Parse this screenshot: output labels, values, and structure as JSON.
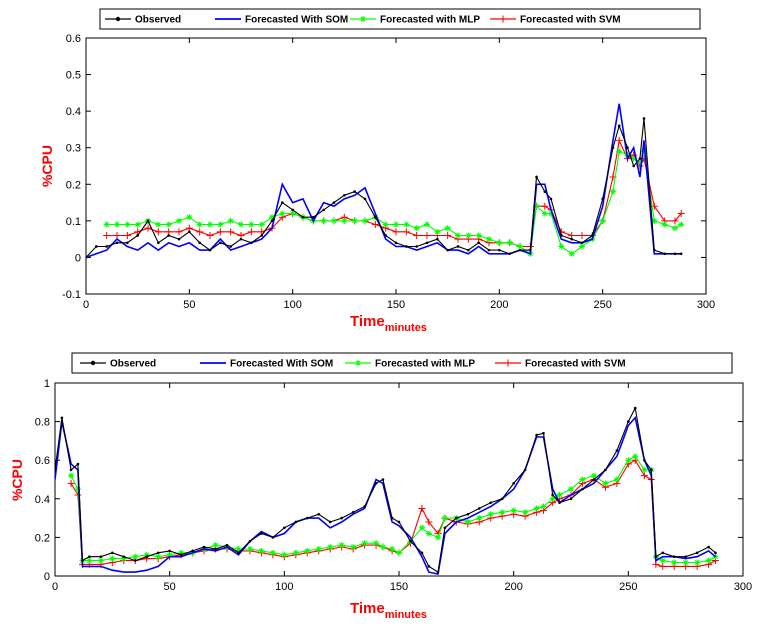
{
  "colors": {
    "observed": "#000000",
    "som": "#0000ff",
    "mlp": "#00ff00",
    "svm": "#ff0000",
    "label": "#ff0000"
  },
  "chart_data": [
    {
      "type": "line",
      "ylabel": "%CPU",
      "xlabel": "Time",
      "xlabel_sub": "minutes",
      "xlim": [
        0,
        300
      ],
      "ylim": [
        -0.1,
        0.6
      ],
      "xticks": [
        "0",
        "50",
        "100",
        "150",
        "200",
        "250",
        "300"
      ],
      "yticks": [
        "-0.1",
        "0",
        "0.1",
        "0.2",
        "0.3",
        "0.4",
        "0.5",
        "0.6"
      ],
      "legend_position": "top-outside",
      "x": [
        0,
        5,
        10,
        15,
        20,
        25,
        30,
        35,
        40,
        45,
        50,
        55,
        60,
        65,
        70,
        75,
        80,
        85,
        90,
        95,
        100,
        105,
        110,
        115,
        120,
        125,
        130,
        135,
        140,
        145,
        150,
        155,
        160,
        165,
        170,
        175,
        180,
        185,
        190,
        195,
        200,
        205,
        210,
        215,
        218,
        222,
        225,
        230,
        235,
        240,
        245,
        250,
        255,
        258,
        262,
        265,
        268,
        270,
        275,
        280,
        285,
        288
      ],
      "series": [
        {
          "name": "Observed",
          "color_key": "observed",
          "marker": "dot",
          "values": [
            0,
            0.03,
            0.03,
            0.04,
            0.04,
            0.06,
            0.1,
            0.04,
            0.06,
            0.05,
            0.07,
            0.04,
            0.02,
            0.04,
            0.03,
            0.05,
            0.04,
            0.06,
            0.1,
            0.15,
            0.13,
            0.11,
            0.11,
            0.13,
            0.15,
            0.17,
            0.18,
            0.16,
            0.11,
            0.06,
            0.04,
            0.03,
            0.03,
            0.04,
            0.05,
            0.02,
            0.03,
            0.02,
            0.04,
            0.02,
            0.02,
            0.01,
            0.02,
            0.02,
            0.22,
            0.18,
            0.16,
            0.06,
            0.05,
            0.04,
            0.06,
            0.16,
            0.3,
            0.36,
            0.3,
            0.25,
            0.27,
            0.38,
            0.02,
            0.01,
            0.01,
            0.01
          ]
        },
        {
          "name": "Forecasted With SOM",
          "color_key": "som",
          "marker": "none",
          "values": [
            0,
            0.01,
            0.02,
            0.05,
            0.03,
            0.02,
            0.04,
            0.02,
            0.04,
            0.03,
            0.04,
            0.02,
            0.02,
            0.05,
            0.02,
            0.03,
            0.04,
            0.05,
            0.08,
            0.2,
            0.15,
            0.16,
            0.1,
            0.15,
            0.14,
            0.16,
            0.17,
            0.19,
            0.12,
            0.05,
            0.03,
            0.03,
            0.02,
            0.03,
            0.04,
            0.02,
            0.02,
            0.01,
            0.03,
            0.01,
            0.01,
            0.01,
            0.02,
            0.01,
            0.2,
            0.2,
            0.13,
            0.05,
            0.04,
            0.04,
            0.05,
            0.14,
            0.32,
            0.42,
            0.27,
            0.3,
            0.22,
            0.32,
            0.01,
            0.01,
            0.01,
            0.01
          ]
        },
        {
          "name": "Forecasted with MLP",
          "color_key": "mlp",
          "marker": "star",
          "values": [
            null,
            null,
            0.09,
            0.09,
            0.09,
            0.09,
            0.1,
            0.09,
            0.09,
            0.1,
            0.11,
            0.09,
            0.09,
            0.09,
            0.1,
            0.09,
            0.09,
            0.09,
            0.11,
            0.12,
            0.12,
            0.11,
            0.1,
            0.1,
            0.1,
            0.1,
            0.1,
            0.1,
            0.11,
            0.09,
            0.09,
            0.09,
            0.08,
            0.09,
            0.07,
            0.08,
            0.06,
            0.06,
            0.06,
            0.05,
            0.04,
            0.04,
            0.03,
            0.01,
            0.14,
            0.12,
            0.12,
            0.03,
            0.01,
            0.03,
            0.05,
            0.1,
            0.18,
            0.29,
            0.28,
            0.27,
            0.26,
            0.29,
            0.1,
            0.09,
            0.08,
            0.09
          ]
        },
        {
          "name": "Forecasted with SVM",
          "color_key": "svm",
          "marker": "plus",
          "values": [
            null,
            null,
            0.06,
            0.06,
            0.06,
            0.07,
            0.08,
            0.07,
            0.07,
            0.07,
            0.08,
            0.07,
            0.06,
            0.07,
            0.07,
            0.06,
            0.07,
            0.07,
            0.08,
            0.11,
            0.12,
            0.11,
            0.1,
            0.1,
            0.1,
            0.11,
            0.1,
            0.1,
            0.09,
            0.08,
            0.07,
            0.07,
            0.06,
            0.06,
            0.06,
            0.06,
            0.05,
            0.05,
            0.05,
            0.04,
            0.04,
            0.04,
            0.03,
            0.03,
            0.14,
            0.14,
            0.13,
            0.07,
            0.06,
            0.06,
            0.06,
            0.1,
            0.22,
            0.32,
            0.27,
            0.28,
            0.25,
            0.27,
            0.14,
            0.1,
            0.1,
            0.12
          ]
        }
      ]
    },
    {
      "type": "line",
      "ylabel": "%CPU",
      "xlabel": "Time",
      "xlabel_sub": "minutes",
      "xlim": [
        0,
        300
      ],
      "ylim": [
        0,
        1
      ],
      "xticks": [
        "0",
        "50",
        "100",
        "150",
        "200",
        "250",
        "300"
      ],
      "yticks": [
        "0",
        "0.2",
        "0.4",
        "0.6",
        "0.8",
        "1"
      ],
      "legend_position": "top-outside",
      "x": [
        0,
        3,
        7,
        10,
        12,
        15,
        20,
        25,
        30,
        35,
        40,
        45,
        50,
        55,
        60,
        65,
        70,
        75,
        80,
        85,
        90,
        95,
        100,
        105,
        110,
        115,
        120,
        125,
        130,
        135,
        140,
        143,
        147,
        150,
        155,
        160,
        163,
        167,
        170,
        175,
        180,
        185,
        190,
        195,
        200,
        205,
        210,
        213,
        217,
        220,
        225,
        230,
        235,
        240,
        245,
        250,
        253,
        257,
        260,
        262,
        265,
        270,
        275,
        280,
        285,
        288
      ],
      "series": [
        {
          "name": "Observed",
          "color_key": "observed",
          "marker": "dot",
          "values": [
            0.55,
            0.82,
            0.55,
            0.58,
            0.08,
            0.1,
            0.1,
            0.12,
            0.1,
            0.08,
            0.1,
            0.12,
            0.13,
            0.11,
            0.13,
            0.15,
            0.14,
            0.16,
            0.12,
            0.18,
            0.22,
            0.2,
            0.25,
            0.28,
            0.3,
            0.32,
            0.28,
            0.3,
            0.33,
            0.36,
            0.48,
            0.5,
            0.3,
            0.28,
            0.18,
            0.12,
            0.05,
            0.02,
            0.25,
            0.3,
            0.32,
            0.35,
            0.38,
            0.4,
            0.48,
            0.55,
            0.73,
            0.74,
            0.42,
            0.38,
            0.4,
            0.45,
            0.5,
            0.55,
            0.65,
            0.8,
            0.87,
            0.6,
            0.55,
            0.1,
            0.12,
            0.1,
            0.1,
            0.12,
            0.15,
            0.12
          ]
        },
        {
          "name": "Forecasted With SOM",
          "color_key": "som",
          "marker": "none",
          "values": [
            0.5,
            0.8,
            0.58,
            0.55,
            0.05,
            0.05,
            0.05,
            0.03,
            0.02,
            0.02,
            0.03,
            0.05,
            0.1,
            0.1,
            0.12,
            0.14,
            0.13,
            0.15,
            0.11,
            0.18,
            0.23,
            0.2,
            0.22,
            0.28,
            0.3,
            0.3,
            0.25,
            0.28,
            0.32,
            0.35,
            0.5,
            0.48,
            0.28,
            0.26,
            0.2,
            0.1,
            0.02,
            0.01,
            0.22,
            0.28,
            0.3,
            0.33,
            0.36,
            0.4,
            0.45,
            0.55,
            0.72,
            0.72,
            0.45,
            0.38,
            0.42,
            0.45,
            0.48,
            0.55,
            0.62,
            0.78,
            0.82,
            0.6,
            0.52,
            0.08,
            0.1,
            0.1,
            0.09,
            0.1,
            0.13,
            0.1
          ]
        },
        {
          "name": "Forecasted with MLP",
          "color_key": "mlp",
          "marker": "star",
          "values": [
            null,
            null,
            0.52,
            0.45,
            0.08,
            0.08,
            0.08,
            0.09,
            0.09,
            0.1,
            0.11,
            0.1,
            0.11,
            0.12,
            0.12,
            0.14,
            0.16,
            0.15,
            0.14,
            0.14,
            0.13,
            0.12,
            0.11,
            0.12,
            0.13,
            0.14,
            0.15,
            0.16,
            0.15,
            0.17,
            0.17,
            0.15,
            0.14,
            0.12,
            0.18,
            0.25,
            0.22,
            0.2,
            0.3,
            0.3,
            0.28,
            0.3,
            0.32,
            0.33,
            0.34,
            0.33,
            0.35,
            0.36,
            0.4,
            0.42,
            0.45,
            0.5,
            0.52,
            0.48,
            0.5,
            0.6,
            0.62,
            0.55,
            0.55,
            0.1,
            0.08,
            0.07,
            0.07,
            0.07,
            0.08,
            0.1
          ]
        },
        {
          "name": "Forecasted with SVM",
          "color_key": "svm",
          "marker": "plus",
          "values": [
            null,
            null,
            0.48,
            0.42,
            0.06,
            0.06,
            0.06,
            0.07,
            0.08,
            0.08,
            0.09,
            0.09,
            0.1,
            0.11,
            0.12,
            0.13,
            0.14,
            0.14,
            0.13,
            0.13,
            0.12,
            0.11,
            0.1,
            0.11,
            0.12,
            0.13,
            0.14,
            0.15,
            0.14,
            0.16,
            0.16,
            0.15,
            0.13,
            0.12,
            0.17,
            0.35,
            0.28,
            0.22,
            0.3,
            0.28,
            0.27,
            0.28,
            0.3,
            0.31,
            0.32,
            0.31,
            0.33,
            0.34,
            0.38,
            0.4,
            0.42,
            0.48,
            0.5,
            0.46,
            0.48,
            0.58,
            0.6,
            0.52,
            0.5,
            0.06,
            0.05,
            0.05,
            0.05,
            0.05,
            0.06,
            0.08
          ]
        }
      ]
    }
  ]
}
